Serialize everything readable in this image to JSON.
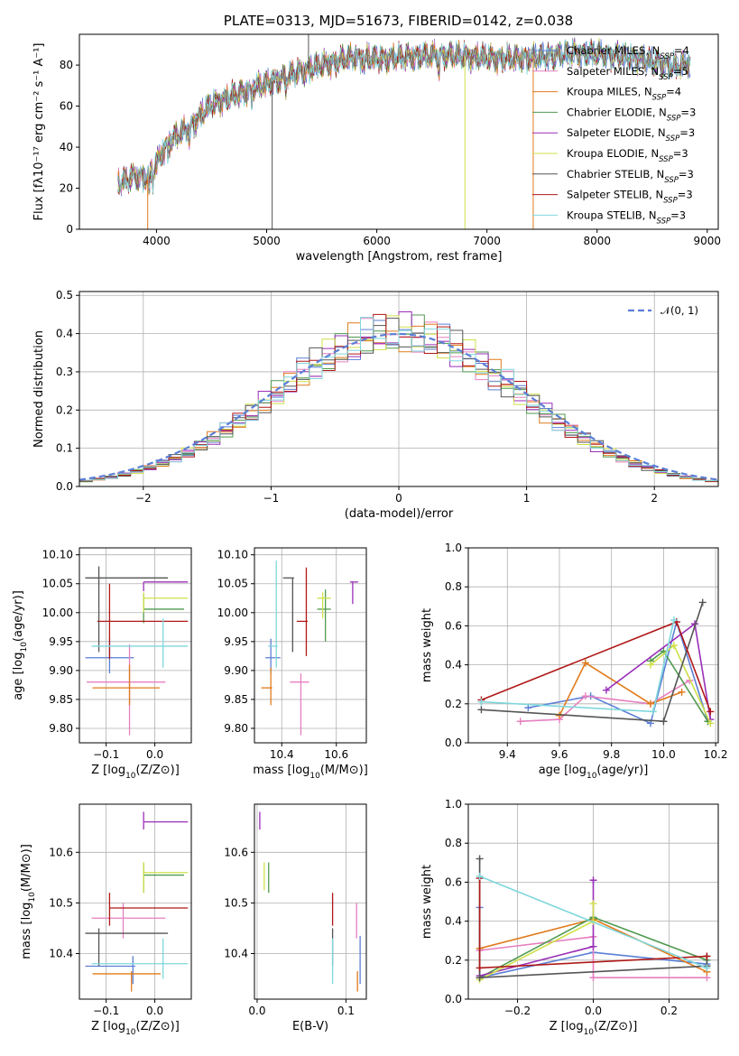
{
  "figure_title": "PLATE=0313, MJD=51673, FIBERID=0142, z=0.038",
  "colors": {
    "chabrier_miles": "#5b7fd6",
    "salpeter_miles": "#e67fc0",
    "kroupa_miles": "#e07b1b",
    "chabrier_elodie": "#4f9a4f",
    "salpeter_elodie": "#9a2fb8",
    "kroupa_elodie": "#cfe04a",
    "chabrier_stelib": "#555555",
    "salpeter_stelib": "#b01818",
    "kroupa_stelib": "#7fd7dc"
  },
  "chart_data": [
    {
      "id": "spectrum",
      "type": "line",
      "xlabel": "wavelength [Angstrom, rest frame]",
      "ylabel": "Flux [fλ10⁻¹⁷ erg cm⁻² s⁻¹ A⁻¹]",
      "xlim": [
        3300,
        9100
      ],
      "ylim": [
        0,
        95
      ],
      "xticks": [
        "4000",
        "5000",
        "6000",
        "7000",
        "8000",
        "9000"
      ],
      "yticks": [
        "0",
        "20",
        "40",
        "60",
        "80"
      ],
      "grid": false,
      "legend_position": "top-right",
      "legend": [
        {
          "main": "Chabrier MILES, N",
          "sub": "SSP",
          "tail": "=4",
          "color_key": "chabrier_miles"
        },
        {
          "main": "Salpeter MILES, N",
          "sub": "SSP",
          "tail": "=5",
          "color_key": "salpeter_miles"
        },
        {
          "main": "Kroupa MILES, N",
          "sub": "SSP",
          "tail": "=4",
          "color_key": "kroupa_miles"
        },
        {
          "main": "Chabrier ELODIE, N",
          "sub": "SSP",
          "tail": "=3",
          "color_key": "chabrier_elodie"
        },
        {
          "main": "Salpeter ELODIE, N",
          "sub": "SSP",
          "tail": "=3",
          "color_key": "salpeter_elodie"
        },
        {
          "main": "Kroupa ELODIE, N",
          "sub": "SSP",
          "tail": "=3",
          "color_key": "kroupa_elodie"
        },
        {
          "main": "Chabrier STELIB, N",
          "sub": "SSP",
          "tail": "=3",
          "color_key": "chabrier_stelib"
        },
        {
          "main": "Salpeter STELIB, N",
          "sub": "SSP",
          "tail": "=3",
          "color_key": "salpeter_stelib"
        },
        {
          "main": "Kroupa STELIB, N",
          "sub": "SSP",
          "tail": "=3",
          "color_key": "kroupa_stelib"
        }
      ],
      "continuum_x": [
        3650,
        3800,
        3900,
        4000,
        4100,
        4300,
        4500,
        4800,
        5000,
        5200,
        5500,
        5800,
        6000,
        6300,
        6600,
        6900,
        7200,
        7500,
        7800,
        8100,
        8400,
        8700,
        8850
      ],
      "continuum_y": [
        22,
        26,
        25,
        32,
        42,
        50,
        61,
        67,
        71,
        75,
        80,
        84,
        83,
        84,
        85,
        84,
        83,
        84,
        86,
        85,
        83,
        79,
        81
      ],
      "drops": [
        {
          "x": 3920,
          "color_key": "kroupa_miles",
          "to": 0
        },
        {
          "x": 5050,
          "color_key": "chabrier_stelib",
          "to": 0
        },
        {
          "x": 5380,
          "color_key": "chabrier_stelib",
          "to": 95
        },
        {
          "x": 6800,
          "color_key": "kroupa_elodie",
          "to": 0
        },
        {
          "x": 7420,
          "color_key": "kroupa_miles",
          "to": 0
        }
      ],
      "wavelength_ranges": {
        "default": [
          3650,
          8850
        ],
        "kroupa_miles": [
          3650,
          7420
        ],
        "salpeter_miles": [
          3650,
          7420
        ]
      }
    },
    {
      "id": "residuals",
      "type": "histogram",
      "xlabel": "(data-model)/error",
      "ylabel": "Normed distribution",
      "xlim": [
        -2.5,
        2.5
      ],
      "ylim": [
        0,
        0.51
      ],
      "xticks": [
        "−2",
        "−1",
        "0",
        "1",
        "2"
      ],
      "yticks": [
        "0.0",
        "0.1",
        "0.2",
        "0.3",
        "0.4",
        "0.5"
      ],
      "grid": true,
      "bin_width": 0.1,
      "legend_position": "top-right",
      "legend": [
        {
          "label": "𝒩(0, 1)",
          "color": "#5b7fd6",
          "dashed": true
        }
      ]
    },
    {
      "id": "z_age",
      "type": "scatter",
      "xlabel_main": "Z [log",
      "xlabel_sub": "10",
      "xlabel_tail": "(Z/Z⊙)]",
      "ylabel_main": "age  [log",
      "ylabel_sub": "10",
      "ylabel_tail": "(age/yr)]",
      "xlim": [
        -0.155,
        0.075
      ],
      "ylim": [
        9.775,
        10.112
      ],
      "xticks": [
        "−0.1",
        "0.0"
      ],
      "yticks": [
        "9.80",
        "9.85",
        "9.90",
        "9.95",
        "10.00",
        "10.05",
        "10.10"
      ],
      "points": [
        {
          "x": -0.093,
          "y": 9.922,
          "xlo": -0.143,
          "xhi": -0.043,
          "ylo": 9.895,
          "yhi": 9.955,
          "color_key": "chabrier_miles"
        },
        {
          "x": -0.052,
          "y": 9.88,
          "xlo": -0.14,
          "xhi": 0.022,
          "ylo": 9.788,
          "yhi": 9.945,
          "color_key": "salpeter_miles"
        },
        {
          "x": -0.052,
          "y": 9.87,
          "xlo": -0.128,
          "xhi": 0.01,
          "ylo": 9.84,
          "yhi": 9.91,
          "color_key": "kroupa_miles"
        },
        {
          "x": -0.023,
          "y": 10.006,
          "xlo": -0.023,
          "xhi": 0.06,
          "ylo": 9.982,
          "yhi": 10.033,
          "color_key": "chabrier_elodie"
        },
        {
          "x": -0.023,
          "y": 10.053,
          "xlo": -0.023,
          "xhi": 0.068,
          "ylo": 10.037,
          "yhi": 10.053,
          "color_key": "salpeter_elodie"
        },
        {
          "x": -0.023,
          "y": 10.025,
          "xlo": -0.023,
          "xhi": 0.068,
          "ylo": 10.0,
          "yhi": 10.035,
          "color_key": "kroupa_elodie"
        },
        {
          "x": -0.115,
          "y": 10.06,
          "xlo": -0.143,
          "xhi": 0.027,
          "ylo": 9.932,
          "yhi": 10.08,
          "color_key": "chabrier_stelib"
        },
        {
          "x": -0.093,
          "y": 9.985,
          "xlo": -0.118,
          "xhi": 0.068,
          "ylo": 9.92,
          "yhi": 10.05,
          "color_key": "salpeter_stelib"
        },
        {
          "x": 0.017,
          "y": 9.942,
          "xlo": -0.13,
          "xhi": 0.068,
          "ylo": 9.905,
          "yhi": 9.99,
          "color_key": "kroupa_stelib"
        }
      ]
    },
    {
      "id": "mass_age",
      "type": "scatter",
      "xlabel_main": "mass [log",
      "xlabel_sub": "10",
      "xlabel_tail": "(M/M⊙)]",
      "xlim": [
        10.3,
        10.71
      ],
      "ylim": [
        9.775,
        10.112
      ],
      "xticks": [
        "10.4",
        "10.6"
      ],
      "yticks": [
        "9.80",
        "9.85",
        "9.90",
        "9.95",
        "10.00",
        "10.05",
        "10.10"
      ],
      "points": [
        {
          "x": 10.36,
          "y": 9.922,
          "xlo": 10.34,
          "xhi": 10.395,
          "ylo": 9.895,
          "yhi": 9.955,
          "color_key": "chabrier_miles"
        },
        {
          "x": 10.47,
          "y": 9.88,
          "xlo": 10.43,
          "xhi": 10.5,
          "ylo": 9.788,
          "yhi": 9.895,
          "color_key": "salpeter_miles"
        },
        {
          "x": 10.36,
          "y": 9.87,
          "xlo": 10.325,
          "xhi": 10.365,
          "ylo": 9.84,
          "yhi": 9.905,
          "color_key": "kroupa_miles"
        },
        {
          "x": 10.56,
          "y": 10.006,
          "xlo": 10.53,
          "xhi": 10.58,
          "ylo": 9.95,
          "yhi": 10.04,
          "color_key": "chabrier_elodie"
        },
        {
          "x": 10.66,
          "y": 10.053,
          "xlo": 10.65,
          "xhi": 10.68,
          "ylo": 10.015,
          "yhi": 10.053,
          "color_key": "salpeter_elodie"
        },
        {
          "x": 10.55,
          "y": 10.025,
          "xlo": 10.53,
          "xhi": 10.58,
          "ylo": 9.99,
          "yhi": 10.035,
          "color_key": "kroupa_elodie"
        },
        {
          "x": 10.44,
          "y": 10.06,
          "xlo": 10.405,
          "xhi": 10.445,
          "ylo": 9.932,
          "yhi": 10.06,
          "color_key": "chabrier_stelib"
        },
        {
          "x": 10.49,
          "y": 9.985,
          "xlo": 10.455,
          "xhi": 10.495,
          "ylo": 9.925,
          "yhi": 10.078,
          "color_key": "salpeter_stelib"
        },
        {
          "x": 10.38,
          "y": 9.942,
          "xlo": 10.35,
          "xhi": 10.385,
          "ylo": 9.905,
          "yhi": 10.09,
          "color_key": "kroupa_stelib"
        }
      ]
    },
    {
      "id": "age_weight",
      "type": "line",
      "xlabel_main": "age  [log",
      "xlabel_sub": "10",
      "xlabel_tail": "(age/yr)]",
      "ylabel": "mass weight",
      "xlim": [
        9.25,
        10.21
      ],
      "ylim": [
        0,
        1
      ],
      "xticks": [
        "9.4",
        "9.6",
        "9.8",
        "10.0",
        "10.2"
      ],
      "yticks": [
        "0.0",
        "0.2",
        "0.4",
        "0.6",
        "0.8",
        "1.0"
      ],
      "grid": true,
      "series": [
        {
          "color_key": "chabrier_miles",
          "x": [
            9.48,
            9.72,
            9.95,
            10.05,
            10.17
          ],
          "y": [
            0.18,
            0.24,
            0.1,
            0.62,
            0.11
          ]
        },
        {
          "color_key": "salpeter_miles",
          "x": [
            9.45,
            9.6,
            9.7,
            9.95,
            10.1
          ],
          "y": [
            0.11,
            0.12,
            0.24,
            0.2,
            0.32
          ]
        },
        {
          "color_key": "kroupa_miles",
          "x": [
            9.6,
            9.7,
            9.95,
            10.07
          ],
          "y": [
            0.14,
            0.41,
            0.2,
            0.26
          ]
        },
        {
          "color_key": "chabrier_elodie",
          "x": [
            9.95,
            10.0,
            10.17
          ],
          "y": [
            0.42,
            0.47,
            0.11
          ]
        },
        {
          "color_key": "salpeter_elodie",
          "x": [
            9.78,
            10.12,
            10.18
          ],
          "y": [
            0.27,
            0.61,
            0.12
          ]
        },
        {
          "color_key": "kroupa_elodie",
          "x": [
            9.95,
            10.04,
            10.18
          ],
          "y": [
            0.4,
            0.5,
            0.1
          ]
        },
        {
          "color_key": "chabrier_stelib",
          "x": [
            9.3,
            10.0,
            10.15
          ],
          "y": [
            0.17,
            0.11,
            0.72
          ]
        },
        {
          "color_key": "salpeter_stelib",
          "x": [
            9.3,
            10.05,
            10.18
          ],
          "y": [
            0.22,
            0.62,
            0.16
          ]
        },
        {
          "color_key": "kroupa_stelib",
          "x": [
            9.3,
            9.96,
            10.04
          ],
          "y": [
            0.21,
            0.16,
            0.63
          ]
        }
      ]
    },
    {
      "id": "z_mass",
      "type": "scatter",
      "xlabel_main": "Z [log",
      "xlabel_sub": "10",
      "xlabel_tail": "(Z/Z⊙)]",
      "ylabel_main": "mass [log",
      "ylabel_sub": "10",
      "ylabel_tail": "(M/M⊙)]",
      "xlim": [
        -0.155,
        0.075
      ],
      "ylim": [
        10.31,
        10.695
      ],
      "xticks": [
        "−0.1",
        "0.0"
      ],
      "yticks": [
        "10.4",
        "10.5",
        "10.6"
      ],
      "points": [
        {
          "x": -0.045,
          "y": 10.375,
          "xlo": -0.143,
          "xhi": -0.04,
          "ylo": 10.34,
          "yhi": 10.395,
          "color_key": "chabrier_miles"
        },
        {
          "x": -0.065,
          "y": 10.47,
          "xlo": -0.13,
          "xhi": 0.022,
          "ylo": 10.43,
          "yhi": 10.5,
          "color_key": "salpeter_miles"
        },
        {
          "x": -0.048,
          "y": 10.36,
          "xlo": -0.128,
          "xhi": 0.012,
          "ylo": 10.325,
          "yhi": 10.365,
          "color_key": "kroupa_miles"
        },
        {
          "x": -0.023,
          "y": 10.555,
          "xlo": -0.023,
          "xhi": 0.06,
          "ylo": 10.52,
          "yhi": 10.58,
          "color_key": "chabrier_elodie"
        },
        {
          "x": -0.023,
          "y": 10.66,
          "xlo": -0.023,
          "xhi": 0.068,
          "ylo": 10.645,
          "yhi": 10.68,
          "color_key": "salpeter_elodie"
        },
        {
          "x": -0.023,
          "y": 10.56,
          "xlo": -0.023,
          "xhi": 0.068,
          "ylo": 10.52,
          "yhi": 10.58,
          "color_key": "kroupa_elodie"
        },
        {
          "x": -0.115,
          "y": 10.44,
          "xlo": -0.143,
          "xhi": 0.027,
          "ylo": 10.375,
          "yhi": 10.45,
          "color_key": "chabrier_stelib"
        },
        {
          "x": -0.093,
          "y": 10.49,
          "xlo": -0.093,
          "xhi": 0.068,
          "ylo": 10.455,
          "yhi": 10.52,
          "color_key": "salpeter_stelib"
        },
        {
          "x": 0.017,
          "y": 10.38,
          "xlo": -0.13,
          "xhi": 0.068,
          "ylo": 10.35,
          "yhi": 10.43,
          "color_key": "kroupa_stelib"
        }
      ]
    },
    {
      "id": "ebv_mass",
      "type": "scatter",
      "xlabel": "E(B-V)",
      "xlim": [
        -0.003,
        0.123
      ],
      "ylim": [
        10.31,
        10.695
      ],
      "xticks": [
        "0.0",
        "0.1"
      ],
      "yticks": [
        "10.4",
        "10.5",
        "10.6"
      ],
      "points": [
        {
          "x": 0.116,
          "y": 10.375,
          "ylo": 10.34,
          "yhi": 10.435,
          "color_key": "chabrier_miles"
        },
        {
          "x": 0.112,
          "y": 10.47,
          "ylo": 10.43,
          "yhi": 10.5,
          "color_key": "salpeter_miles"
        },
        {
          "x": 0.113,
          "y": 10.36,
          "ylo": 10.325,
          "yhi": 10.365,
          "color_key": "kroupa_miles"
        },
        {
          "x": 0.013,
          "y": 10.555,
          "ylo": 10.52,
          "yhi": 10.58,
          "color_key": "chabrier_elodie"
        },
        {
          "x": 0.003,
          "y": 10.66,
          "ylo": 10.645,
          "yhi": 10.68,
          "color_key": "salpeter_elodie"
        },
        {
          "x": 0.008,
          "y": 10.56,
          "ylo": 10.525,
          "yhi": 10.58,
          "color_key": "kroupa_elodie"
        },
        {
          "x": 0.085,
          "y": 10.44,
          "ylo": 10.375,
          "yhi": 10.45,
          "color_key": "chabrier_stelib"
        },
        {
          "x": 0.085,
          "y": 10.49,
          "ylo": 10.455,
          "yhi": 10.52,
          "color_key": "salpeter_stelib"
        },
        {
          "x": 0.085,
          "y": 10.38,
          "ylo": 10.34,
          "yhi": 10.43,
          "color_key": "kroupa_stelib"
        }
      ]
    },
    {
      "id": "z_weight",
      "type": "line",
      "xlabel_main": "Z [log",
      "xlabel_sub": "10",
      "xlabel_tail": "(Z/Z⊙)]",
      "ylabel": "mass weight",
      "xlim": [
        -0.33,
        0.33
      ],
      "ylim": [
        0,
        1
      ],
      "xticks": [
        "−0.2",
        "0.0",
        "0.2"
      ],
      "yticks": [
        "0.0",
        "0.2",
        "0.4",
        "0.6",
        "0.8",
        "1.0"
      ],
      "grid": true,
      "series": [
        {
          "color_key": "chabrier_miles",
          "x": [
            -0.3,
            -0.3,
            0.0,
            0.3
          ],
          "y": [
            0.47,
            0.11,
            0.24,
            0.18
          ]
        },
        {
          "color_key": "salpeter_miles",
          "x": [
            -0.3,
            0.0,
            0.0,
            0.3
          ],
          "y": [
            0.25,
            0.32,
            0.11,
            0.11
          ]
        },
        {
          "color_key": "kroupa_miles",
          "x": [
            -0.3,
            0.0,
            0.3
          ],
          "y": [
            0.26,
            0.41,
            0.14
          ]
        },
        {
          "color_key": "chabrier_elodie",
          "x": [
            -0.3,
            0.0,
            0.3
          ],
          "y": [
            0.11,
            0.42,
            0.2
          ]
        },
        {
          "color_key": "salpeter_elodie",
          "x": [
            -0.3,
            0.0,
            0.0
          ],
          "y": [
            0.12,
            0.27,
            0.61
          ]
        },
        {
          "color_key": "kroupa_elodie",
          "x": [
            -0.3,
            0.0,
            0.0
          ],
          "y": [
            0.1,
            0.4,
            0.49
          ]
        },
        {
          "color_key": "chabrier_stelib",
          "x": [
            -0.3,
            -0.3,
            0.3,
            0.3
          ],
          "y": [
            0.72,
            0.11,
            0.17,
            0.22
          ]
        },
        {
          "color_key": "salpeter_stelib",
          "x": [
            -0.3,
            -0.3,
            0.3
          ],
          "y": [
            0.62,
            0.16,
            0.22
          ]
        },
        {
          "color_key": "kroupa_stelib",
          "x": [
            -0.3,
            0.3
          ],
          "y": [
            0.63,
            0.16
          ]
        }
      ]
    }
  ]
}
